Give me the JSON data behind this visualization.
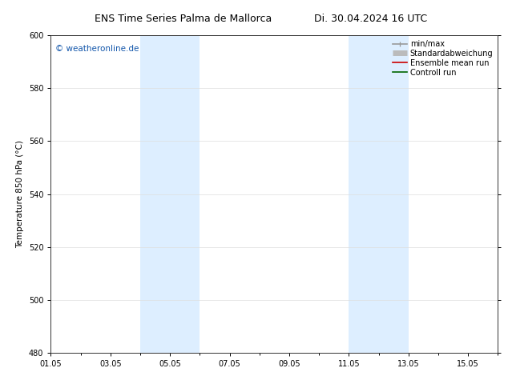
{
  "title_left": "ENS Time Series Palma de Mallorca",
  "title_right": "Di. 30.04.2024 16 UTC",
  "ylabel": "Temperature 850 hPa (°C)",
  "watermark": "© weatheronline.de",
  "ylim": [
    480,
    600
  ],
  "yticks": [
    480,
    500,
    520,
    540,
    560,
    580,
    600
  ],
  "xlim": [
    0,
    15
  ],
  "xtick_labels": [
    "01.05",
    "03.05",
    "05.05",
    "07.05",
    "09.05",
    "11.05",
    "13.05",
    "15.05"
  ],
  "xtick_positions": [
    0,
    2,
    4,
    6,
    8,
    10,
    12,
    14
  ],
  "weekend_bands": [
    {
      "start": 3,
      "end": 5
    },
    {
      "start": 10,
      "end": 12
    }
  ],
  "weekend_color": "#ddeeff",
  "background_color": "#ffffff",
  "plot_bg_color": "#ffffff",
  "legend_items": [
    {
      "label": "min/max",
      "color": "#999999",
      "lw": 1.2
    },
    {
      "label": "Standardabweichung",
      "color": "#bbbbbb",
      "lw": 5
    },
    {
      "label": "Ensemble mean run",
      "color": "#cc0000",
      "lw": 1.2
    },
    {
      "label": "Controll run",
      "color": "#006600",
      "lw": 1.2
    }
  ],
  "grid_color": "#dddddd",
  "title_fontsize": 9,
  "label_fontsize": 7.5,
  "tick_fontsize": 7,
  "watermark_color": "#1155aa",
  "watermark_fontsize": 7.5,
  "spine_color": "#333333"
}
